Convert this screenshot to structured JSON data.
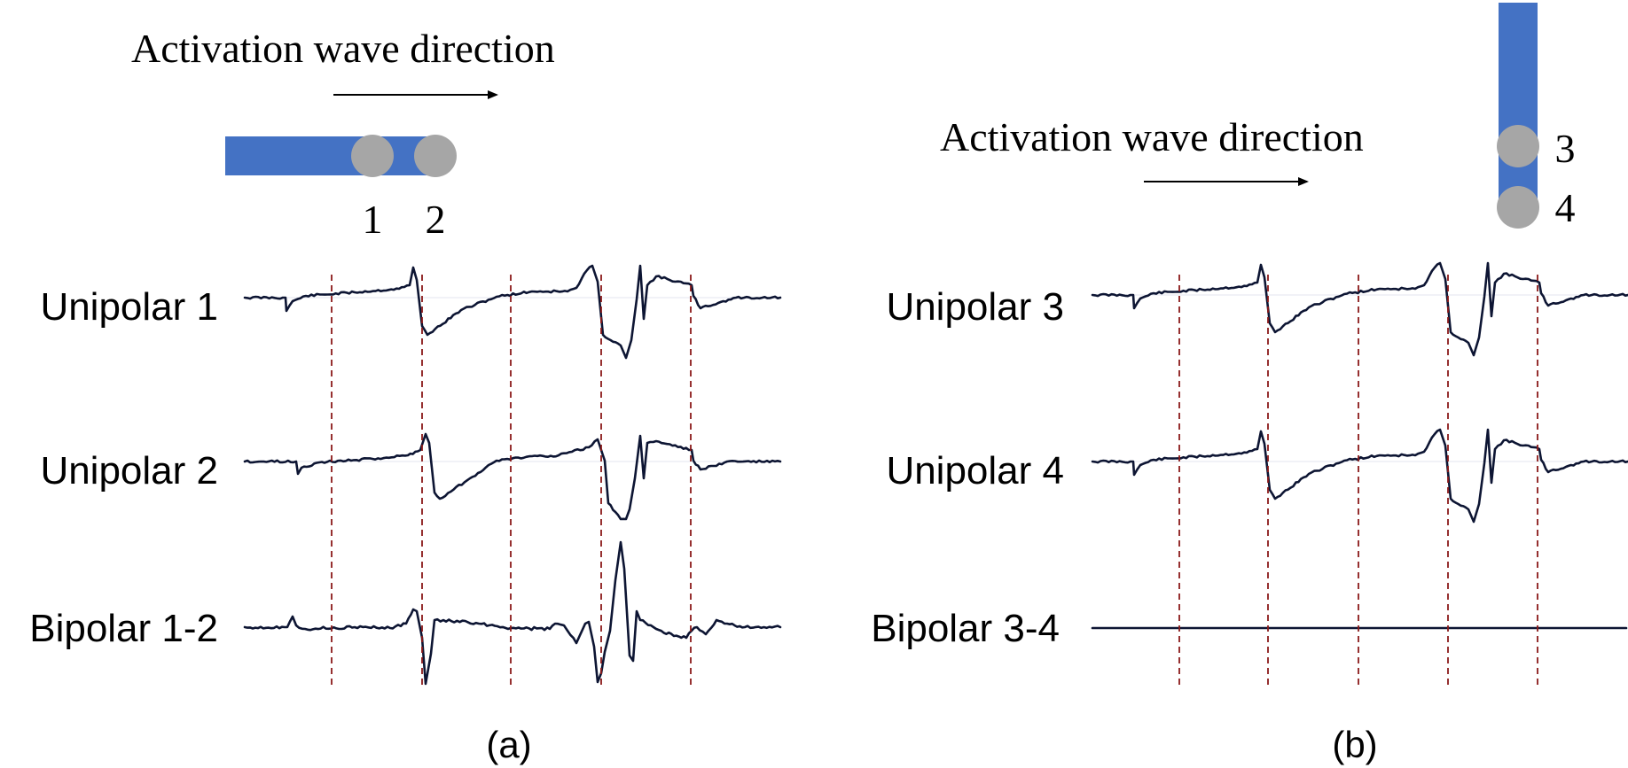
{
  "panel_a": {
    "direction_label": "Activation wave direction",
    "electrode_labels": [
      "1",
      "2"
    ],
    "trace_labels": [
      "Unipolar 1",
      "Unipolar 2",
      "Bipolar 1-2"
    ],
    "caption": "(a)"
  },
  "panel_b": {
    "direction_label": "Activation wave direction",
    "electrode_labels": [
      "3",
      "4"
    ],
    "trace_labels": [
      "Unipolar 3",
      "Unipolar 4",
      "Bipolar 3-4"
    ],
    "caption": "(b)"
  },
  "colors": {
    "catheter": "#4472c4",
    "electrode": "#a6a6a6",
    "trace": "#0d1533",
    "marker_line": "#8b1a1a"
  }
}
